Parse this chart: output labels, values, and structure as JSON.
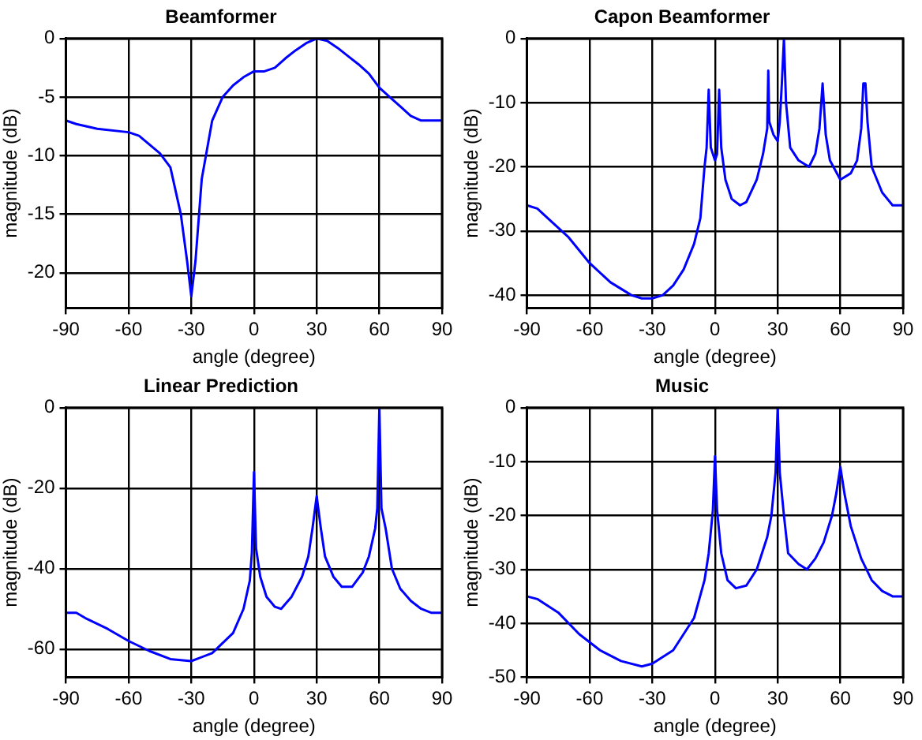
{
  "chart_data": [
    {
      "type": "line",
      "title": "Beamformer",
      "xlabel": "angle (degree)",
      "ylabel": "magnitude (dB)",
      "xlim": [
        -90,
        90
      ],
      "xticks": [
        -90,
        -60,
        -30,
        0,
        30,
        60,
        90
      ],
      "ylim": [
        -23,
        0
      ],
      "yticks": [
        -20,
        -15,
        -10,
        -5,
        0
      ],
      "grid": true,
      "x": [
        -90,
        -85,
        -75,
        -60,
        -55,
        -45,
        -40,
        -35,
        -32,
        -30,
        -28,
        -25,
        -20,
        -15,
        -10,
        -5,
        0,
        5,
        10,
        15,
        20,
        25,
        30,
        35,
        40,
        45,
        50,
        55,
        60,
        65,
        70,
        75,
        80,
        90
      ],
      "series": [
        {
          "color": "#0000ff",
          "values": [
            -7,
            -7.3,
            -7.7,
            -8,
            -8.3,
            -9.8,
            -11,
            -15,
            -19,
            -22,
            -19,
            -12,
            -7,
            -5,
            -4,
            -3.3,
            -2.8,
            -2.8,
            -2.5,
            -1.7,
            -1,
            -0.4,
            0,
            -0.2,
            -0.8,
            -1.5,
            -2.2,
            -3,
            -4.2,
            -5,
            -5.8,
            -6.6,
            -7,
            -7
          ]
        }
      ]
    },
    {
      "type": "line",
      "title": "Capon Beamformer",
      "xlabel": "angle (degree)",
      "ylabel": "magnitude (dB)",
      "xlim": [
        -90,
        90
      ],
      "xticks": [
        -90,
        -60,
        -30,
        0,
        30,
        60,
        90
      ],
      "ylim": [
        -42,
        0
      ],
      "yticks": [
        -40,
        -30,
        -20,
        -10,
        0
      ],
      "grid": true,
      "x": [
        -90,
        -85,
        -80,
        -70,
        -60,
        -50,
        -40,
        -35,
        -30,
        -25,
        -20,
        -15,
        -10,
        -7,
        -5,
        -4,
        -3,
        -2,
        0,
        1,
        2,
        3,
        5,
        8,
        12,
        15,
        20,
        23,
        25,
        25.5,
        26,
        28,
        30,
        31,
        32,
        33,
        34,
        36,
        40,
        45,
        48,
        50,
        51.5,
        53,
        55,
        60,
        65,
        68,
        70,
        71,
        72,
        73,
        75,
        80,
        85,
        90
      ],
      "series": [
        {
          "color": "#0000ff",
          "values": [
            -26,
            -26.5,
            -28,
            -31,
            -35,
            -38,
            -40,
            -40.5,
            -40.5,
            -40,
            -38.5,
            -36,
            -32,
            -28,
            -20,
            -17,
            -8,
            -17,
            -19,
            -18,
            -8,
            -17,
            -22,
            -25,
            -26,
            -25.5,
            -22,
            -18,
            -14,
            -5,
            -13,
            -15,
            -16,
            -13,
            -7,
            0,
            -10,
            -17,
            -19,
            -20,
            -18,
            -14,
            -7,
            -15,
            -19,
            -22,
            -21,
            -19,
            -14,
            -7,
            -7,
            -13,
            -20,
            -24,
            -26,
            -26
          ]
        }
      ]
    },
    {
      "type": "line",
      "title": "Linear Prediction",
      "xlabel": "angle (degree)",
      "ylabel": "magnitude (dB)",
      "xlim": [
        -90,
        90
      ],
      "xticks": [
        -90,
        -60,
        -30,
        0,
        30,
        60,
        90
      ],
      "ylim": [
        -67,
        0
      ],
      "yticks": [
        -60,
        -40,
        -20,
        0
      ],
      "grid": true,
      "x": [
        -90,
        -85,
        -80,
        -70,
        -60,
        -50,
        -40,
        -30,
        -20,
        -10,
        -5,
        -2,
        -1,
        0,
        1,
        3,
        6,
        10,
        13,
        18,
        23,
        26,
        28,
        30,
        32,
        34,
        38,
        42,
        47,
        52,
        55,
        58,
        59,
        60,
        61,
        63,
        66,
        70,
        75,
        80,
        85,
        90
      ],
      "series": [
        {
          "color": "#0000ff",
          "values": [
            -51,
            -51,
            -52.5,
            -55,
            -58,
            -60.5,
            -62.5,
            -63,
            -61,
            -56,
            -50,
            -43,
            -36,
            -16,
            -35,
            -42,
            -47,
            -49.5,
            -50,
            -47,
            -42,
            -37,
            -30,
            -22,
            -30,
            -37,
            -42,
            -44.5,
            -44.5,
            -41,
            -37,
            -30,
            -25,
            0,
            -25,
            -30,
            -40,
            -45,
            -48,
            -50,
            -51,
            -51
          ]
        }
      ]
    },
    {
      "type": "line",
      "title": "Music",
      "xlabel": "angle (degree)",
      "ylabel": "magnitude (dB)",
      "xlim": [
        -90,
        90
      ],
      "xticks": [
        -90,
        -60,
        -30,
        0,
        30,
        60,
        90
      ],
      "ylim": [
        -50,
        0
      ],
      "yticks": [
        -50,
        -40,
        -30,
        -20,
        -10,
        0
      ],
      "grid": true,
      "x": [
        -90,
        -85,
        -75,
        -65,
        -55,
        -45,
        -35,
        -30,
        -20,
        -10,
        -5,
        -3,
        -1,
        0,
        1,
        3,
        6,
        10,
        15,
        20,
        25,
        27,
        29,
        30,
        31,
        33,
        35,
        40,
        44,
        48,
        52,
        56,
        58,
        60,
        62,
        65,
        70,
        75,
        80,
        85,
        90
      ],
      "series": [
        {
          "color": "#0000ff",
          "values": [
            -35,
            -35.5,
            -38,
            -42,
            -45,
            -47,
            -48,
            -47.5,
            -45,
            -39,
            -32,
            -27,
            -19,
            -9,
            -19,
            -27,
            -32,
            -33.5,
            -33,
            -30,
            -24,
            -20,
            -12,
            0,
            -12,
            -20,
            -27,
            -29,
            -30,
            -28,
            -25,
            -20,
            -16,
            -11,
            -16,
            -22,
            -28,
            -32,
            -34,
            -35,
            -35
          ]
        }
      ]
    }
  ]
}
